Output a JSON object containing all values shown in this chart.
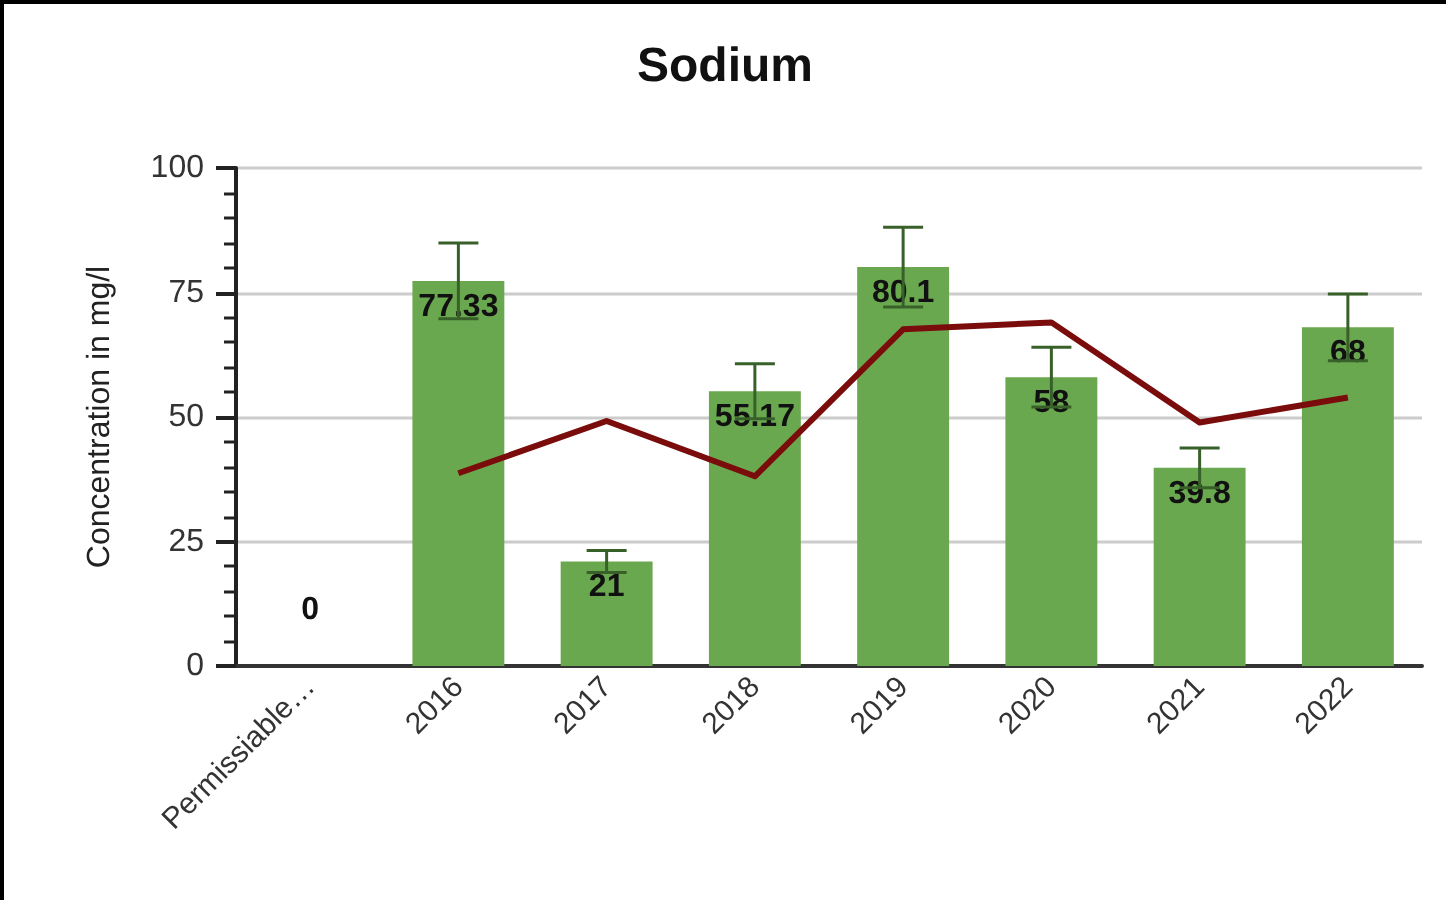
{
  "chart_data": {
    "type": "bar",
    "title": "Sodium",
    "ylabel": "Concentration in mg/l",
    "categories": [
      "Permissiable…",
      "2016",
      "2017",
      "2018",
      "2019",
      "2020",
      "2021",
      "2022"
    ],
    "series": [
      {
        "color": "#6aa84f",
        "values": [
          0,
          77.33,
          21,
          55.17,
          80.1,
          58,
          39.8,
          68
        ],
        "errors": [
          null,
          7.6,
          2.2,
          5.5,
          8,
          6,
          4,
          6.7
        ],
        "data_labels": true
      },
      {
        "type": "line",
        "color": "#7b0c0c",
        "values": [
          null,
          38.7,
          49.2,
          38.1,
          67.6,
          69,
          48.9,
          53.9
        ]
      }
    ],
    "ylim": [
      0,
      100
    ],
    "yticks": [
      0,
      25,
      50,
      75,
      100
    ],
    "grid": "y"
  }
}
